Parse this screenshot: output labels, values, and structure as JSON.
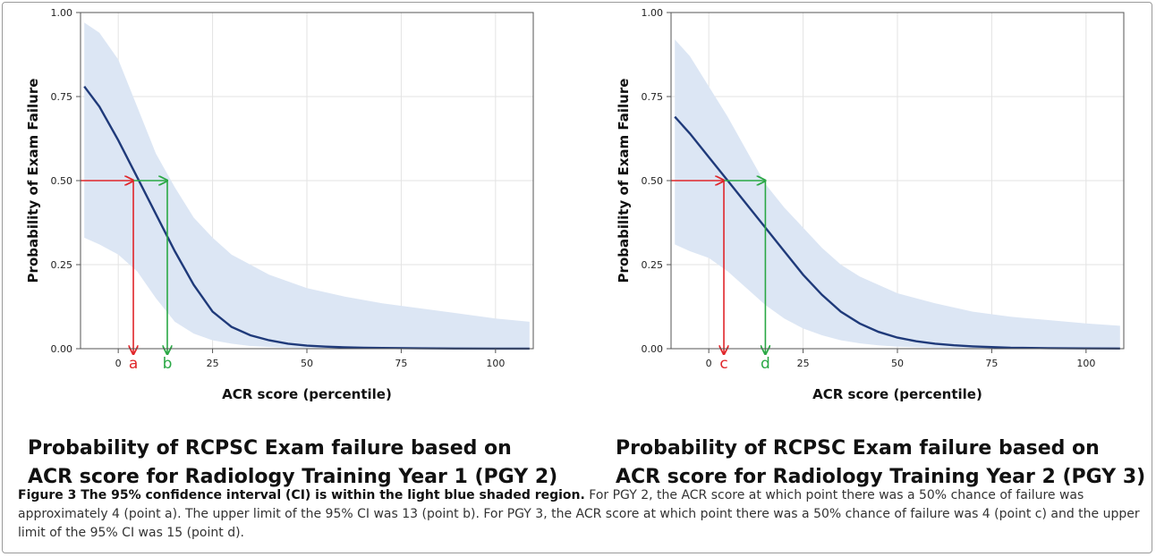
{
  "chart_data": [
    {
      "type": "line",
      "title": "Probability of  RCPSC Exam failure based on ACR score for Radiology Training Year 1 (PGY 2)",
      "title_lines": [
        "Probability of  RCPSC Exam failure based on",
        "ACR score for Radiology Training Year 1 (PGY 2)"
      ],
      "xlabel": "ACR score (percentile)",
      "ylabel": "Probability of Exam Failure",
      "xlim": [
        -10,
        110
      ],
      "ylim": [
        0,
        1
      ],
      "xticks": [
        0,
        25,
        50,
        75,
        100
      ],
      "yticks": [
        "0.00",
        "0.25",
        "0.50",
        "0.75",
        "1.00"
      ],
      "grid": true,
      "series": [
        {
          "role": "fit",
          "color": "#1f3a7a",
          "x": [
            -9,
            -5,
            0,
            5,
            10,
            15,
            20,
            25,
            30,
            35,
            40,
            45,
            50,
            55,
            60,
            65,
            70,
            80,
            90,
            100,
            109
          ],
          "y": [
            0.78,
            0.72,
            0.62,
            0.51,
            0.4,
            0.29,
            0.19,
            0.11,
            0.065,
            0.04,
            0.025,
            0.015,
            0.009,
            0.006,
            0.004,
            0.003,
            0.002,
            0.001,
            0.0005,
            0.0003,
            0.0002
          ]
        },
        {
          "role": "ci_upper",
          "color": "#dce6f4",
          "x": [
            -9,
            -5,
            0,
            5,
            10,
            15,
            20,
            25,
            30,
            35,
            40,
            45,
            50,
            60,
            70,
            80,
            90,
            100,
            109
          ],
          "y": [
            0.97,
            0.94,
            0.86,
            0.72,
            0.58,
            0.48,
            0.39,
            0.33,
            0.28,
            0.25,
            0.22,
            0.2,
            0.18,
            0.155,
            0.135,
            0.12,
            0.105,
            0.09,
            0.08
          ]
        },
        {
          "role": "ci_lower",
          "x": [
            -9,
            -5,
            0,
            5,
            10,
            15,
            20,
            25,
            30,
            35,
            40,
            45,
            50,
            60,
            70,
            80,
            90,
            100,
            109
          ],
          "y": [
            0.33,
            0.31,
            0.28,
            0.23,
            0.15,
            0.08,
            0.045,
            0.025,
            0.015,
            0.008,
            0.005,
            0.003,
            0.002,
            0.001,
            0.0005,
            0.0003,
            0.0002,
            0.0001,
            0.0001
          ]
        }
      ],
      "annotations": [
        {
          "label": "a",
          "x": 4,
          "y": 0.5,
          "color": "#e0262a"
        },
        {
          "label": "b",
          "x": 13,
          "y": 0.5,
          "color": "#2aa845"
        }
      ]
    },
    {
      "type": "line",
      "title": "Probability of  RCPSC Exam failure based on ACR score for Radiology Training Year 2 (PGY 3)",
      "title_lines": [
        "Probability of  RCPSC Exam failure based on",
        "ACR score for Radiology Training Year 2 (PGY 3)"
      ],
      "xlabel": "ACR score (percentile)",
      "ylabel": "Probability of Exam Failure",
      "xlim": [
        -10,
        110
      ],
      "ylim": [
        0,
        1
      ],
      "xticks": [
        0,
        25,
        50,
        75,
        100
      ],
      "yticks": [
        "0.00",
        "0.25",
        "0.50",
        "0.75",
        "1.00"
      ],
      "grid": true,
      "series": [
        {
          "role": "fit",
          "color": "#1f3a7a",
          "x": [
            -9,
            -5,
            0,
            5,
            10,
            15,
            20,
            25,
            30,
            35,
            40,
            45,
            50,
            55,
            60,
            65,
            70,
            80,
            90,
            100,
            109
          ],
          "y": [
            0.69,
            0.64,
            0.57,
            0.5,
            0.43,
            0.36,
            0.29,
            0.22,
            0.16,
            0.11,
            0.075,
            0.05,
            0.033,
            0.022,
            0.015,
            0.01,
            0.007,
            0.003,
            0.0015,
            0.0007,
            0.0004
          ]
        },
        {
          "role": "ci_upper",
          "color": "#dce6f4",
          "x": [
            -9,
            -5,
            0,
            5,
            10,
            15,
            20,
            25,
            30,
            35,
            40,
            45,
            50,
            60,
            70,
            80,
            90,
            100,
            109
          ],
          "y": [
            0.92,
            0.87,
            0.78,
            0.69,
            0.59,
            0.49,
            0.42,
            0.36,
            0.3,
            0.25,
            0.215,
            0.19,
            0.165,
            0.135,
            0.11,
            0.095,
            0.085,
            0.075,
            0.068
          ]
        },
        {
          "role": "ci_lower",
          "x": [
            -9,
            -5,
            0,
            5,
            10,
            15,
            20,
            25,
            30,
            35,
            40,
            45,
            50,
            60,
            70,
            80,
            90,
            100,
            109
          ],
          "y": [
            0.31,
            0.29,
            0.27,
            0.23,
            0.18,
            0.13,
            0.09,
            0.06,
            0.04,
            0.025,
            0.016,
            0.01,
            0.006,
            0.003,
            0.0015,
            0.0007,
            0.0004,
            0.0002,
            0.0001
          ]
        }
      ],
      "annotations": [
        {
          "label": "c",
          "x": 4,
          "y": 0.5,
          "color": "#e0262a"
        },
        {
          "label": "d",
          "x": 15,
          "y": 0.5,
          "color": "#2aa845"
        }
      ]
    }
  ],
  "caption": {
    "lead": "Figure 3 The 95% confidence interval (CI) is within the light blue shaded region.",
    "text": " For PGY 2, the ACR score at which point there was a 50% chance of failure was approximately 4 (point a). The upper limit of the 95% CI was 13 (point b). For PGY 3, the ACR score at which point there was a 50% chance of failure was 4 (point c) and the upper limit of the 95% CI was 15 (point d)."
  },
  "colors": {
    "curve": "#1f3a7a",
    "band": "#dce6f4",
    "grid": "#e3e3e3",
    "axis": "#555555",
    "red": "#e0262a",
    "green": "#2aa845"
  }
}
